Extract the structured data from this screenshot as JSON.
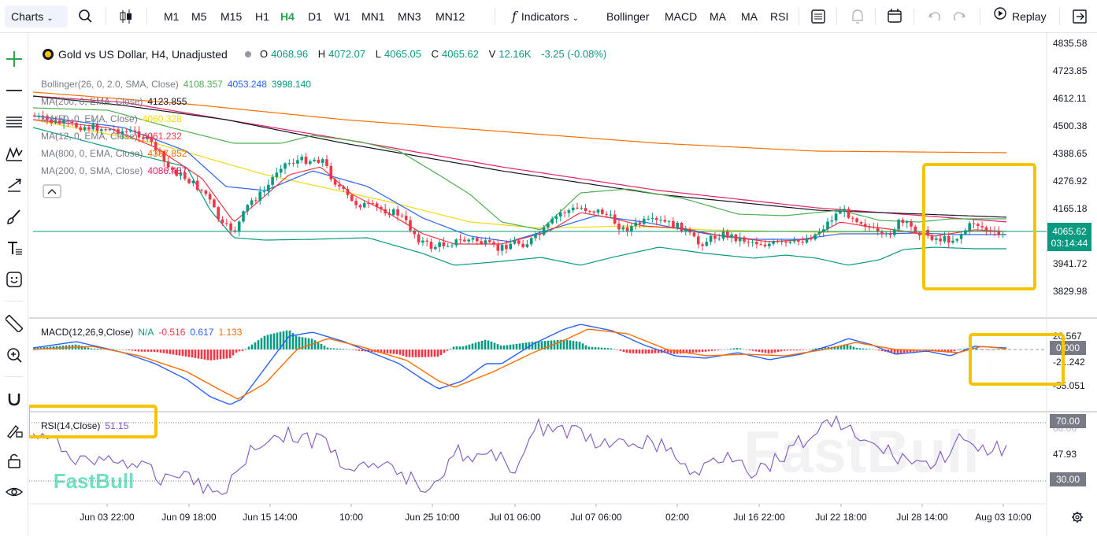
{
  "toolbar": {
    "charts_label": "Charts",
    "timeframes": [
      "M1",
      "M5",
      "M15",
      "H1",
      "H4",
      "D1",
      "W1",
      "MN1",
      "MN3",
      "MN12"
    ],
    "active_timeframe": "H4",
    "indicators_label": "Indicators",
    "quick_indicators": [
      "Bollinger",
      "MACD",
      "MA",
      "MA",
      "RSI"
    ],
    "replay_label": "Replay"
  },
  "legend": {
    "symbol_title": "Gold vs US Dollar, H4, Unadjusted",
    "o_label": "O",
    "o_value": "4068.96",
    "h_label": "H",
    "h_value": "4072.07",
    "l_label": "L",
    "l_value": "4065.05",
    "c_label": "C",
    "c_value": "4065.62",
    "v_label": "V",
    "v_value": "12.16K",
    "change": "-3.25 (-0.08%)"
  },
  "indicators": [
    {
      "label": "Bollinger(26, 0, 2.0, SMA, Close)",
      "values": [
        "4108.357",
        "4053.248",
        "3998.140"
      ],
      "colors": [
        "#4caf50",
        "#2962ff",
        "#089981"
      ]
    },
    {
      "label": "MA(200, 0, EMA, Close)",
      "values": [
        "4123.855"
      ],
      "colors": [
        "#131722"
      ]
    },
    {
      "label": "MA(50, 0, EMA, Close)",
      "values": [
        "4060.328"
      ],
      "colors": [
        "#f5d90a"
      ]
    },
    {
      "label": "MA(12, 0, EMA, Close)",
      "values": [
        "4061.232"
      ],
      "colors": [
        "#f23645"
      ]
    },
    {
      "label": "MA(800, 0, EMA, Close)",
      "values": [
        "4387.852"
      ],
      "colors": [
        "#ff6d00"
      ]
    },
    {
      "label": "MA(200, 0, SMA, Close)",
      "values": [
        "4086.457"
      ],
      "colors": [
        "#e91e63"
      ]
    }
  ],
  "price_axis": [
    "4835.58",
    "4723.85",
    "4612.11",
    "4500.38",
    "4388.65",
    "4276.92",
    "4165.18",
    "3941.72",
    "3829.98"
  ],
  "price_tag": {
    "price": "4065.62",
    "countdown": "03:14:44"
  },
  "macd": {
    "label": "MACD(12,26,9,Close)",
    "values": [
      "N/A",
      "-0.516",
      "0.617",
      "1.133"
    ],
    "axis": [
      "20.567",
      "-21.242",
      "-55.051"
    ],
    "tag": "0.000"
  },
  "rsi": {
    "label": "RSI(14,Close)",
    "value": "51.15",
    "axis": [
      "47.93"
    ],
    "upper": "70.00",
    "lower": "30.00",
    "hidden_tick": "68.00"
  },
  "time_axis": [
    "Jun 03 22:00",
    "Jun 09 18:00",
    "Jun 15 14:00",
    "10:00",
    "Jun 25 10:00",
    "Jul 01 06:00",
    "Jul 07 06:00",
    "02:00",
    "Jul 16 22:00",
    "Jul 22 18:00",
    "Jul 28 14:00",
    "Aug 03 10:00"
  ],
  "watermark": "FastBull",
  "colors": {
    "up": "#089981",
    "down": "#f23645",
    "accent": "#2ea44f",
    "highlight": "#f5c400",
    "macd_line": "#2962ff",
    "signal_line": "#ff6d00",
    "rsi_line": "#7e57c2"
  }
}
